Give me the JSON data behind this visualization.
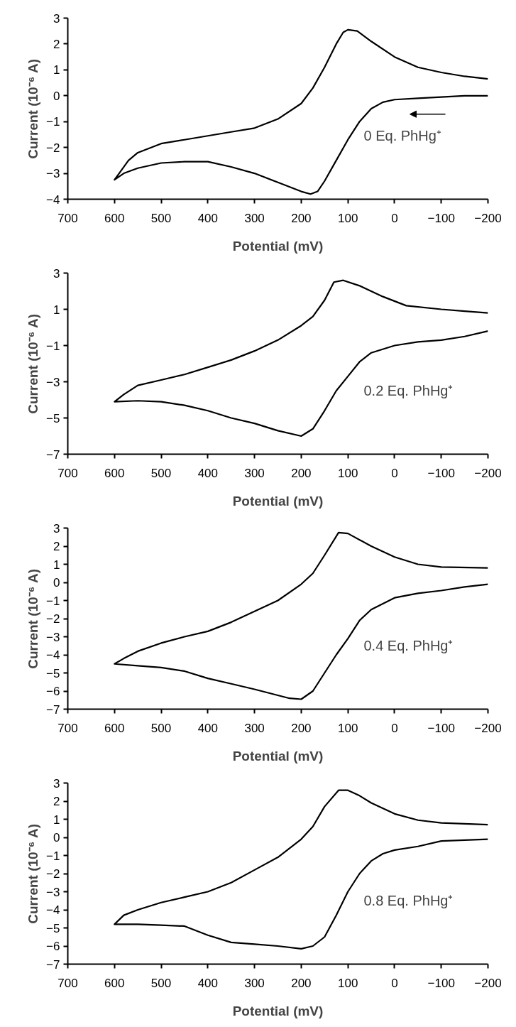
{
  "chart_data": [
    {
      "type": "line",
      "xlabel": "Potential (mV)",
      "ylabel": "Current (10⁻⁶ A)",
      "xlim": [
        700,
        -200
      ],
      "xticks": [
        700,
        600,
        500,
        400,
        300,
        200,
        100,
        0,
        -100,
        -200
      ],
      "ylim": [
        -4,
        3
      ],
      "yticks": [
        -4,
        -3,
        -2,
        -1,
        0,
        1,
        2,
        3
      ],
      "grid": false,
      "annotations": [
        "0 Eq. PhHg⁺"
      ],
      "series": [
        {
          "color": "#000000",
          "x": [
            -200,
            -150,
            -100,
            -50,
            0,
            25,
            50,
            75,
            100,
            125,
            150,
            165,
            180,
            200,
            250,
            300,
            350,
            400,
            450,
            500,
            550,
            580,
            600,
            590,
            570,
            550,
            500,
            450,
            400,
            350,
            300,
            250,
            200,
            175,
            150,
            125,
            110,
            100,
            80,
            50,
            0,
            -50,
            -100,
            -150,
            -200
          ],
          "values": [
            0.0,
            0.0,
            -0.05,
            -0.1,
            -0.15,
            -0.25,
            -0.5,
            -1.0,
            -1.7,
            -2.5,
            -3.3,
            -3.7,
            -3.8,
            -3.7,
            -3.35,
            -3.0,
            -2.75,
            -2.55,
            -2.55,
            -2.6,
            -2.8,
            -3.0,
            -3.25,
            -3.0,
            -2.5,
            -2.2,
            -1.85,
            -1.7,
            -1.55,
            -1.4,
            -1.25,
            -0.9,
            -0.3,
            0.3,
            1.1,
            2.0,
            2.45,
            2.55,
            2.5,
            2.1,
            1.5,
            1.1,
            0.9,
            0.75,
            0.65
          ]
        }
      ]
    },
    {
      "type": "line",
      "xlabel": "Potential (mV)",
      "ylabel": "Current (10⁻⁶ A)",
      "xlim": [
        700,
        -200
      ],
      "xticks": [
        700,
        600,
        500,
        400,
        300,
        200,
        100,
        0,
        -100,
        -200
      ],
      "ylim": [
        -7,
        3
      ],
      "yticks": [
        -7,
        -5,
        -3,
        -1,
        1,
        3
      ],
      "grid": false,
      "annotations": [
        "0.2 Eq. PhHg⁺"
      ],
      "series": [
        {
          "color": "#000000",
          "x": [
            -200,
            -150,
            -100,
            -50,
            0,
            50,
            75,
            100,
            125,
            150,
            175,
            200,
            250,
            300,
            350,
            400,
            450,
            500,
            550,
            600,
            580,
            550,
            500,
            450,
            400,
            350,
            300,
            250,
            200,
            175,
            150,
            130,
            110,
            75,
            25,
            -25,
            -100,
            -150,
            -200
          ],
          "values": [
            -0.2,
            -0.5,
            -0.7,
            -0.8,
            -1.0,
            -1.4,
            -1.9,
            -2.7,
            -3.5,
            -4.6,
            -5.6,
            -6.0,
            -5.7,
            -5.3,
            -5.0,
            -4.6,
            -4.3,
            -4.1,
            -4.05,
            -4.1,
            -3.7,
            -3.2,
            -2.9,
            -2.6,
            -2.2,
            -1.8,
            -1.3,
            -0.7,
            0.1,
            0.6,
            1.5,
            2.5,
            2.6,
            2.3,
            1.7,
            1.2,
            1.0,
            0.9,
            0.8
          ]
        }
      ]
    },
    {
      "type": "line",
      "xlabel": "Potential (mV)",
      "ylabel": "Current (10⁻⁶ A)",
      "xlim": [
        700,
        -200
      ],
      "xticks": [
        700,
        600,
        500,
        400,
        300,
        200,
        100,
        0,
        -100,
        -200
      ],
      "ylim": [
        -7,
        3
      ],
      "yticks": [
        -7,
        -6,
        -5,
        -4,
        -3,
        -2,
        -1,
        0,
        1,
        2,
        3
      ],
      "grid": false,
      "annotations": [
        "0.4 Eq. PhHg⁺"
      ],
      "series": [
        {
          "color": "#000000",
          "x": [
            -200,
            -150,
            -100,
            -50,
            0,
            50,
            75,
            100,
            125,
            150,
            175,
            200,
            225,
            300,
            350,
            400,
            450,
            500,
            550,
            600,
            580,
            550,
            500,
            450,
            400,
            350,
            300,
            250,
            200,
            175,
            150,
            120,
            100,
            50,
            0,
            -50,
            -100,
            -200
          ],
          "values": [
            -0.1,
            -0.25,
            -0.45,
            -0.6,
            -0.85,
            -1.5,
            -2.1,
            -3.1,
            -4.0,
            -5.0,
            -6.0,
            -6.45,
            -6.4,
            -5.9,
            -5.6,
            -5.3,
            -4.9,
            -4.7,
            -4.6,
            -4.5,
            -4.2,
            -3.8,
            -3.35,
            -3.0,
            -2.7,
            -2.2,
            -1.6,
            -1.0,
            -0.1,
            0.5,
            1.5,
            2.75,
            2.7,
            2.0,
            1.4,
            1.0,
            0.85,
            0.8
          ]
        }
      ]
    },
    {
      "type": "line",
      "xlabel": "Potential (mV)",
      "ylabel": "Current (10⁻⁶ A)",
      "xlim": [
        700,
        -200
      ],
      "xticks": [
        700,
        600,
        500,
        400,
        300,
        200,
        100,
        0,
        -100,
        -200
      ],
      "ylim": [
        -7,
        3
      ],
      "yticks": [
        -7,
        -6,
        -5,
        -4,
        -3,
        -2,
        -1,
        0,
        1,
        2,
        3
      ],
      "grid": false,
      "annotations": [
        "0.8 Eq. PhHg⁺"
      ],
      "series": [
        {
          "color": "#000000",
          "x": [
            -200,
            -150,
            -100,
            -50,
            0,
            25,
            50,
            75,
            100,
            125,
            150,
            175,
            200,
            250,
            300,
            350,
            400,
            450,
            500,
            550,
            600,
            580,
            550,
            500,
            450,
            400,
            350,
            300,
            250,
            200,
            175,
            150,
            120,
            100,
            75,
            50,
            0,
            -50,
            -100,
            -200
          ],
          "values": [
            -0.1,
            -0.15,
            -0.2,
            -0.5,
            -0.7,
            -0.9,
            -1.3,
            -2.0,
            -3.0,
            -4.3,
            -5.5,
            -6.0,
            -6.15,
            -6.0,
            -5.9,
            -5.8,
            -5.4,
            -4.9,
            -4.85,
            -4.8,
            -4.8,
            -4.3,
            -4.0,
            -3.6,
            -3.3,
            -3.0,
            -2.5,
            -1.8,
            -1.1,
            -0.1,
            0.6,
            1.7,
            2.6,
            2.6,
            2.3,
            1.9,
            1.3,
            0.95,
            0.8,
            0.7
          ]
        }
      ]
    }
  ]
}
